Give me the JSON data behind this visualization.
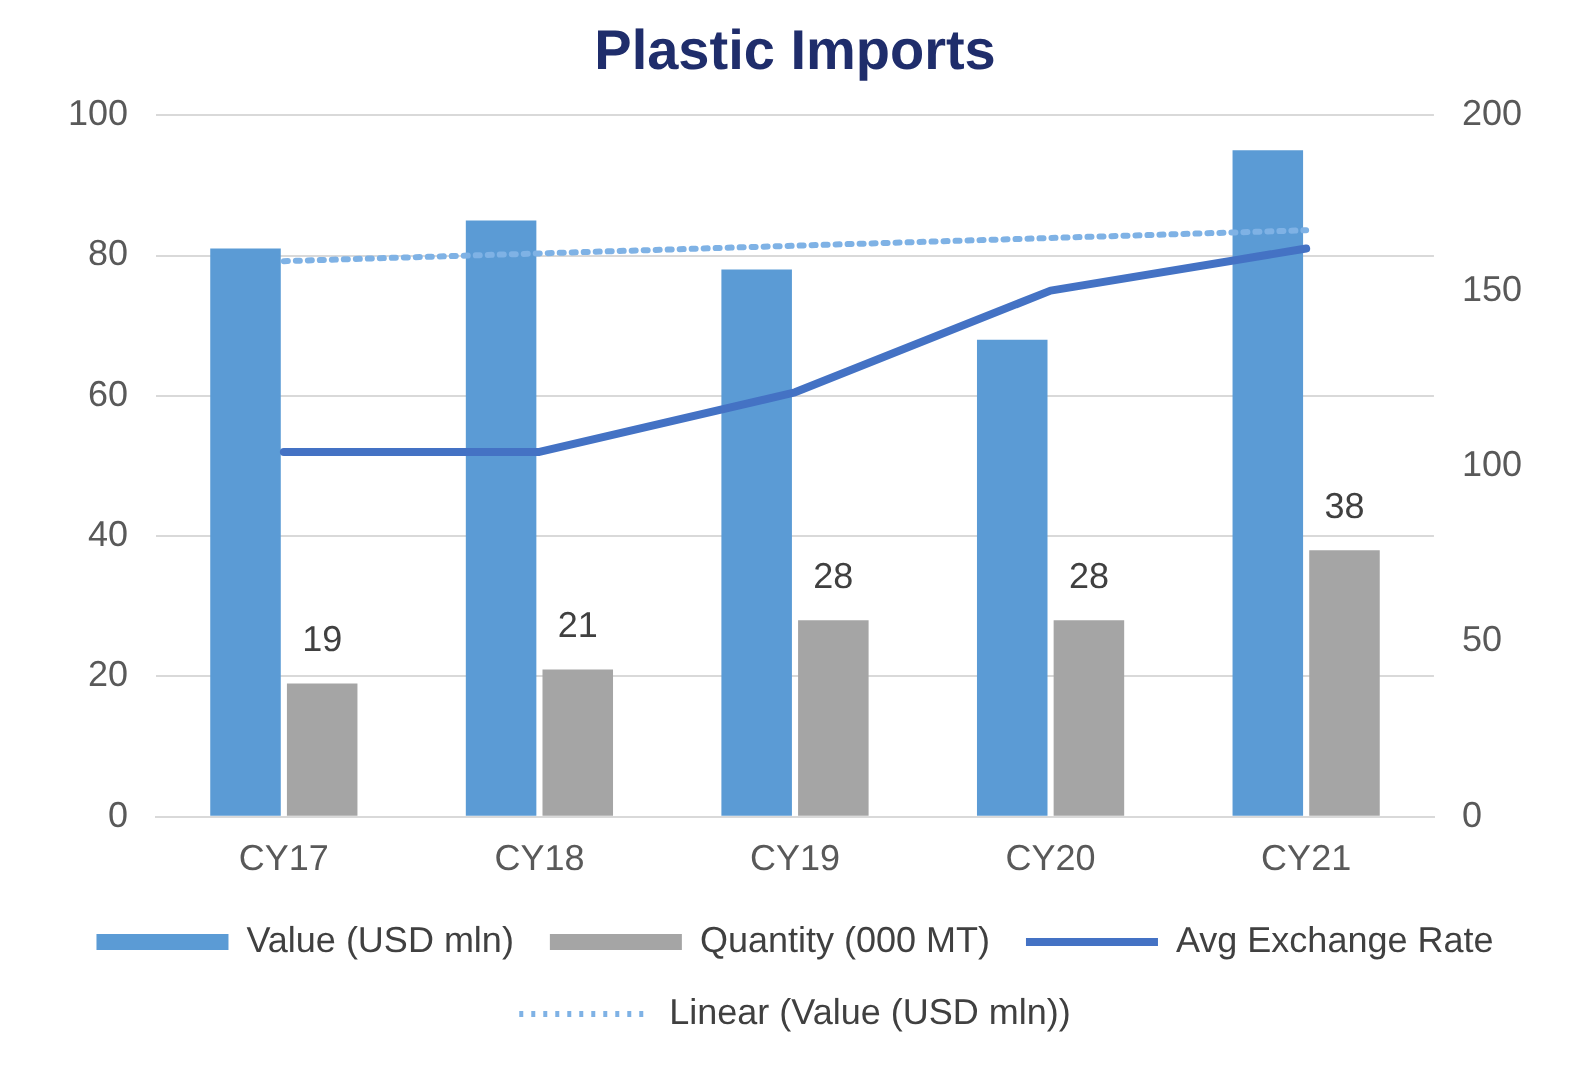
{
  "chart_data": {
    "type": "bar",
    "title": "Plastic Imports",
    "categories": [
      "CY17",
      "CY18",
      "CY19",
      "CY20",
      "CY21"
    ],
    "series": [
      {
        "name": "Value (USD mln)",
        "color": "#5b9bd5",
        "values": [
          81,
          85,
          78,
          68,
          95
        ]
      },
      {
        "name": "Quantity (000 MT)",
        "color": "#a5a5a5",
        "values": [
          19,
          21,
          28,
          28,
          38
        ],
        "value_labels": [
          "19",
          "21",
          "28",
          "28",
          "38"
        ]
      },
      {
        "name": "Avg Exchange Rate",
        "type": "line",
        "axis": "y2",
        "color": "#4472c4",
        "values": [
          104,
          104,
          121,
          150,
          162
        ],
        "line_style": "solid"
      },
      {
        "name": "Linear (Value (USD mln))",
        "type": "line",
        "color": "#7fb2e5",
        "values": [
          79.2,
          80.3,
          81.4,
          82.5,
          83.6
        ],
        "line_style": "dotted"
      }
    ],
    "ylim": [
      0,
      100
    ],
    "yticks": [
      0,
      20,
      40,
      60,
      80,
      100
    ],
    "y2lim": [
      0,
      200
    ],
    "y2ticks": [
      0,
      50,
      100,
      150,
      200
    ],
    "grid": "y",
    "legend": "bottom",
    "marker": "none"
  }
}
